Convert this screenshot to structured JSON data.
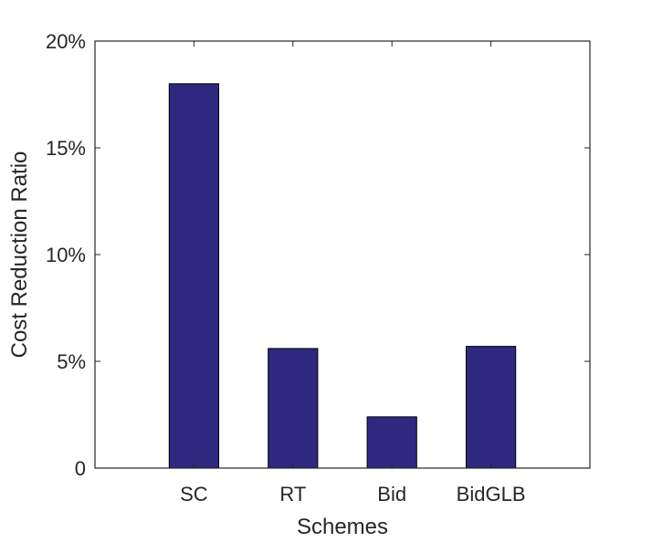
{
  "chart_data": {
    "type": "bar",
    "title": "",
    "xlabel": "Schemes",
    "ylabel": "Cost Reduction Ratio",
    "categories": [
      "SC",
      "RT",
      "Bid",
      "BidGLB"
    ],
    "values": [
      0.18,
      0.056,
      0.024,
      0.057
    ],
    "ylim": [
      0,
      0.2
    ],
    "yticks": [
      0,
      0.05,
      0.1,
      0.15,
      0.2
    ],
    "ytick_labels": [
      "0",
      "5%",
      "10%",
      "15%",
      "20%"
    ],
    "xlim": [
      0,
      5
    ],
    "bar_color": "#2e2880",
    "grid": false,
    "legend": "none"
  }
}
